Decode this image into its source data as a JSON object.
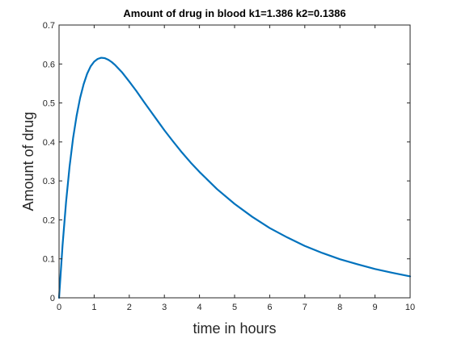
{
  "chart_data": {
    "type": "line",
    "title": "Amount of drug in blood k1=1.386 k2=0.1386",
    "xlabel": "time in hours",
    "ylabel": "Amount of drug",
    "xlim": [
      0,
      10
    ],
    "ylim": [
      0,
      0.7
    ],
    "xticks": [
      "0",
      "1",
      "2",
      "3",
      "4",
      "5",
      "6",
      "7",
      "8",
      "9",
      "10"
    ],
    "yticks": [
      "0",
      "0.1",
      "0.2",
      "0.3",
      "0.4",
      "0.5",
      "0.6",
      "0.7"
    ],
    "grid": false,
    "series": [
      {
        "color": "#0072bd",
        "x": [
          0,
          0.1,
          0.2,
          0.3,
          0.4,
          0.5,
          0.6,
          0.7,
          0.8,
          0.9,
          1.0,
          1.1,
          1.2,
          1.3,
          1.4,
          1.5,
          1.6,
          1.8,
          2.0,
          2.2,
          2.4,
          2.6,
          2.8,
          3.0,
          3.25,
          3.5,
          3.75,
          4.0,
          4.5,
          5.0,
          5.5,
          6.0,
          6.5,
          7.0,
          7.5,
          8.0,
          8.5,
          9.0,
          9.5,
          10.0
        ],
        "y": [
          0,
          0.135,
          0.246,
          0.337,
          0.41,
          0.467,
          0.513,
          0.548,
          0.575,
          0.594,
          0.606,
          0.613,
          0.616,
          0.615,
          0.611,
          0.605,
          0.597,
          0.578,
          0.555,
          0.531,
          0.505,
          0.48,
          0.455,
          0.43,
          0.401,
          0.373,
          0.347,
          0.323,
          0.279,
          0.241,
          0.208,
          0.179,
          0.155,
          0.133,
          0.115,
          0.099,
          0.086,
          0.074,
          0.064,
          0.055
        ]
      }
    ]
  }
}
